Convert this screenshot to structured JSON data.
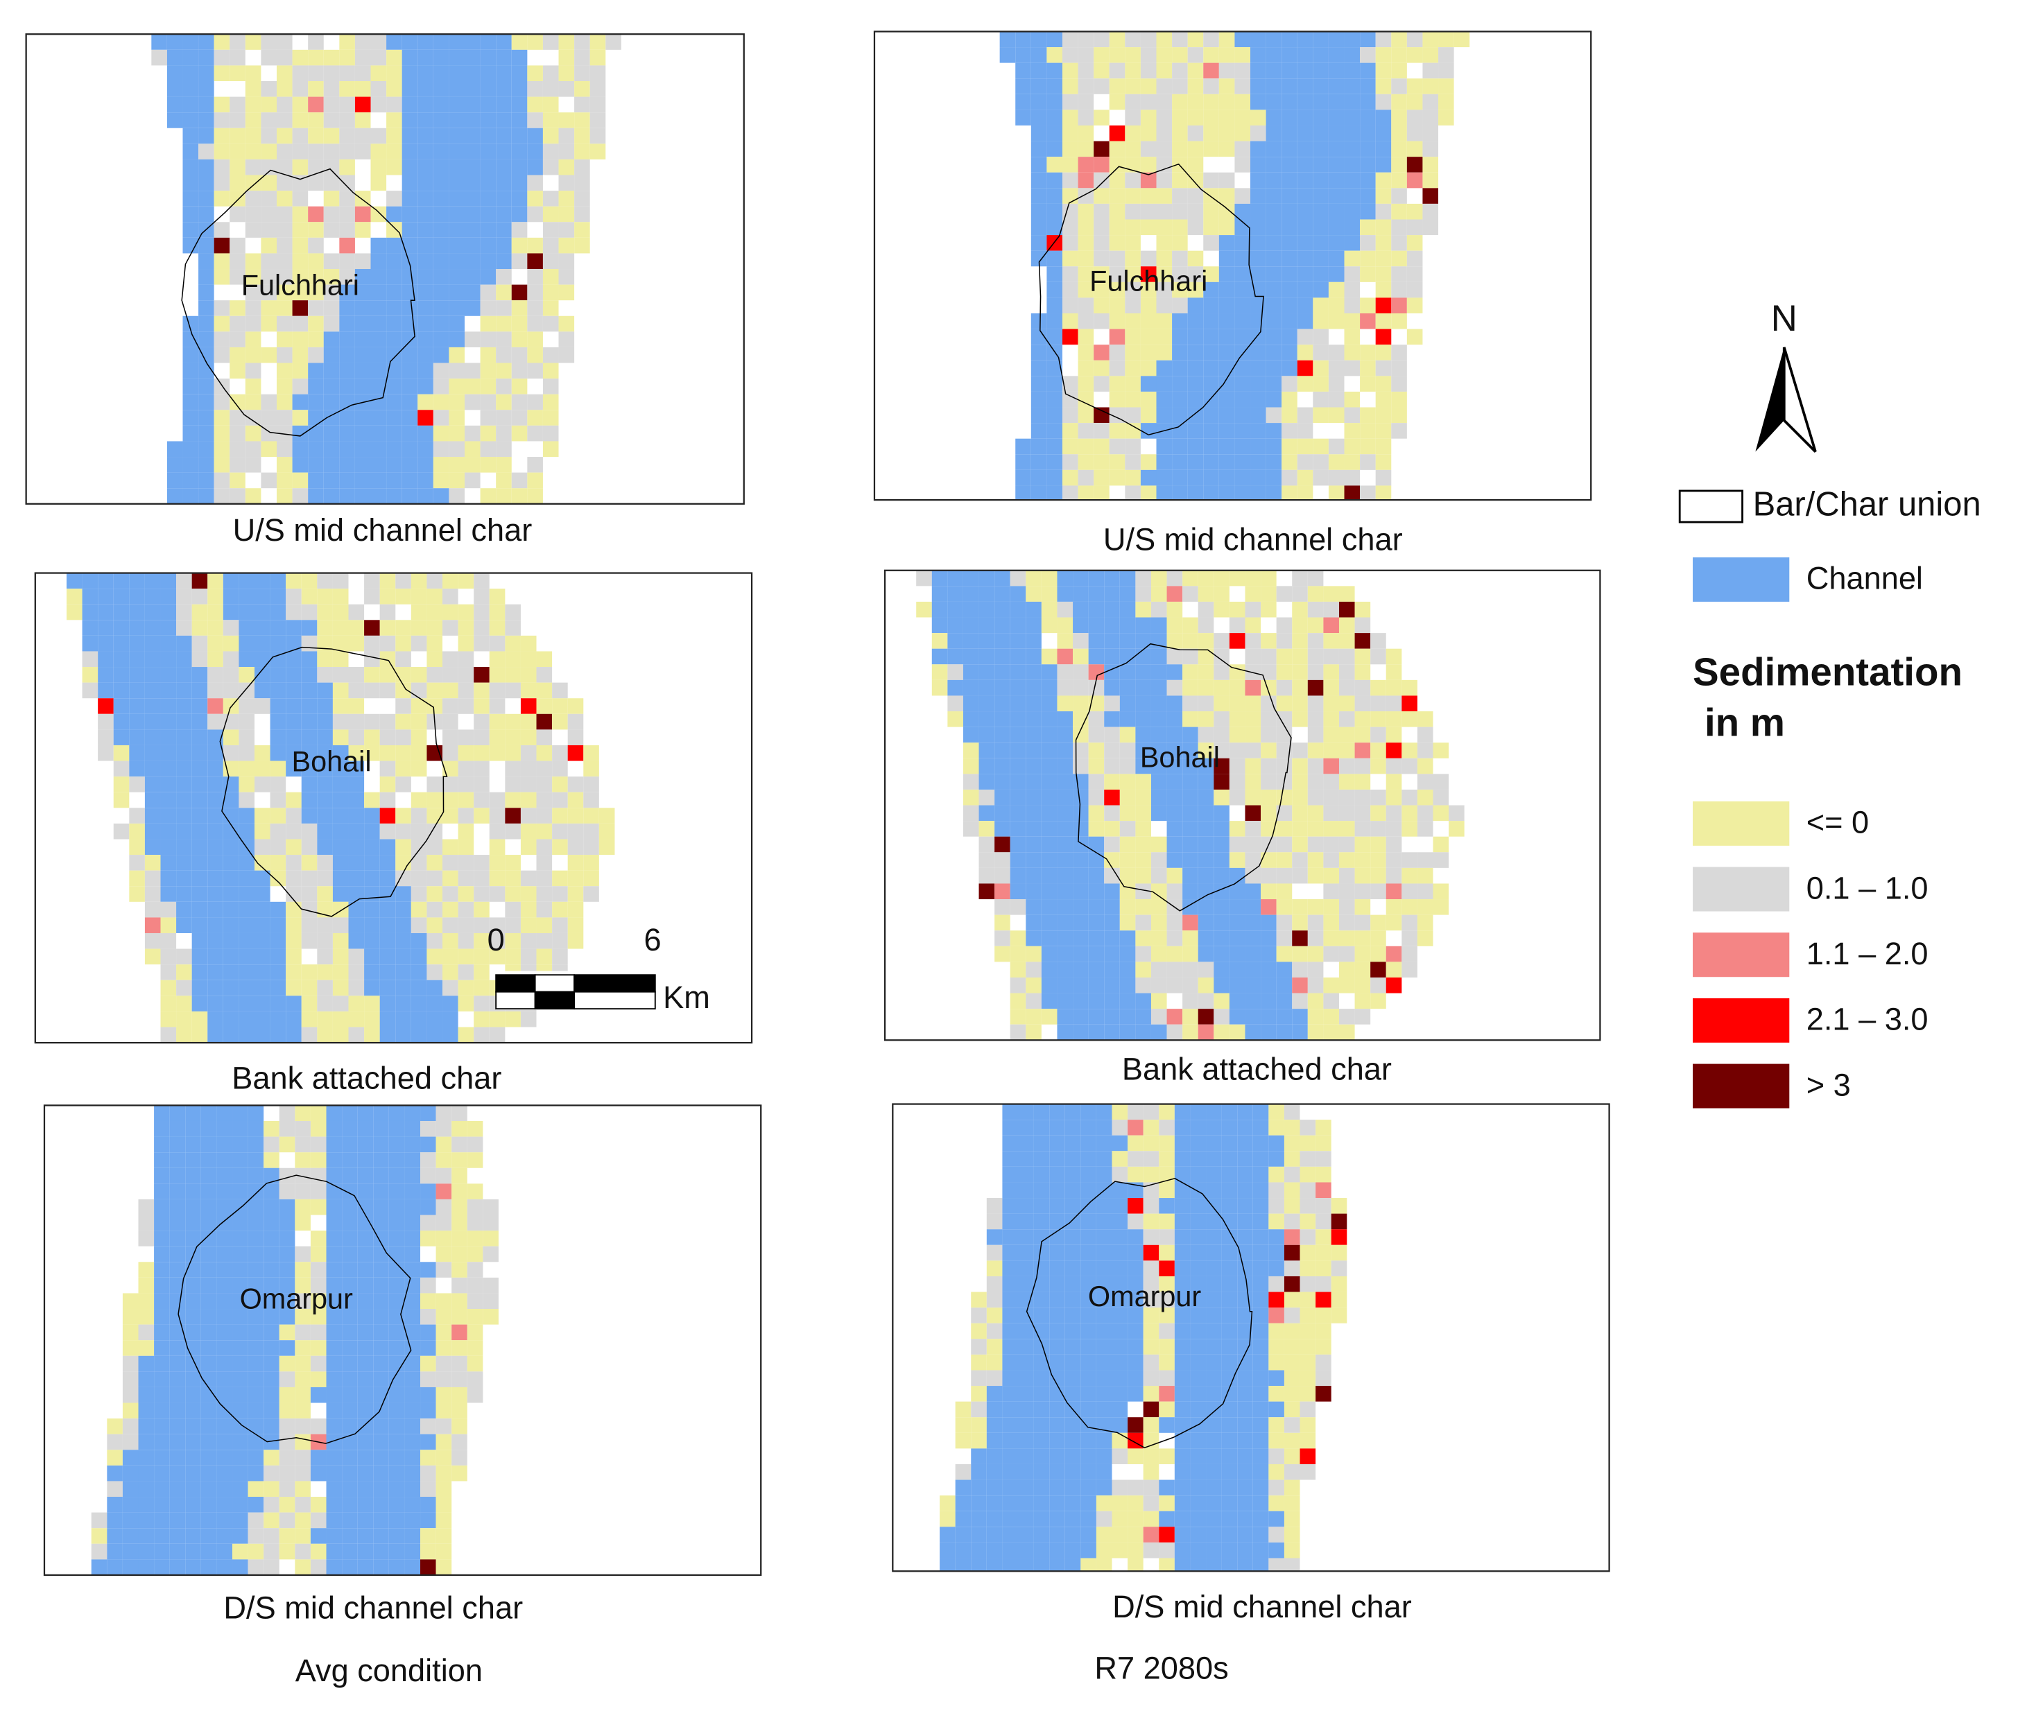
{
  "north": "N",
  "legend": {
    "boundary": "Bar/Char union",
    "channel": {
      "label": "Channel",
      "color": "#6fa8f0"
    },
    "title": "Sedimentation",
    "subtitle": "in m",
    "classes": [
      {
        "label": "<= 0",
        "color": "#f0eea0"
      },
      {
        "label": "0.1 – 1.0",
        "color": "#d9d9d9"
      },
      {
        "label": "1.1 – 2.0",
        "color": "#f48585"
      },
      {
        "label": "2.1 – 3.0",
        "color": "#ff0000"
      },
      {
        "label": "> 3",
        "color": "#730000"
      }
    ]
  },
  "columns": [
    {
      "label": "Avg condition",
      "panels": [
        {
          "caption": "U/S mid channel char",
          "place": "Fulchhari"
        },
        {
          "caption": "Bank attached char",
          "place": "Bohail"
        },
        {
          "caption": "D/S mid channel char",
          "place": "Omarpur"
        }
      ]
    },
    {
      "label": "R7 2080s",
      "panels": [
        {
          "caption": "U/S mid channel char",
          "place": "Fulchhari"
        },
        {
          "caption": "Bank attached char",
          "place": "Bohail"
        },
        {
          "caption": "D/S mid channel char",
          "place": "Omarpur"
        }
      ]
    }
  ],
  "scale_bar": {
    "ticks": [
      0,
      6
    ],
    "unit": "Km"
  }
}
